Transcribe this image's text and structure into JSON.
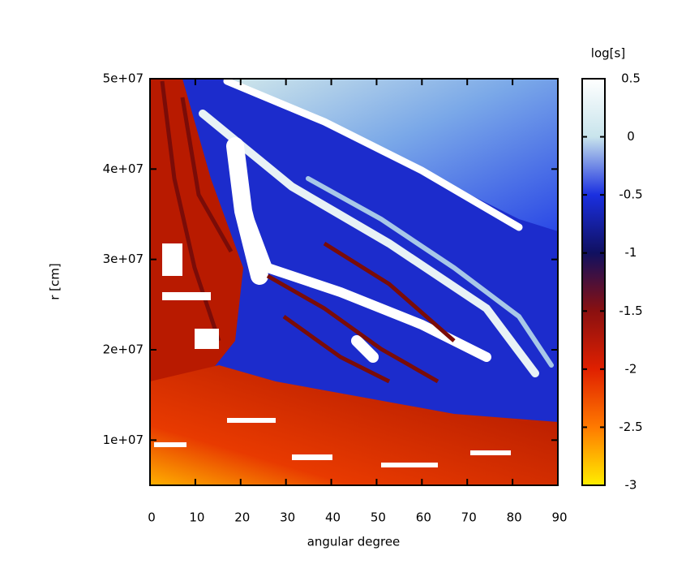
{
  "chart_data": {
    "type": "heatmap",
    "xlabel": "angular degree",
    "ylabel": "r [cm]",
    "xlim": [
      0,
      90
    ],
    "xticks": [
      0,
      10,
      20,
      30,
      40,
      50,
      60,
      70,
      80,
      90
    ],
    "ylim": [
      5000000,
      50000000
    ],
    "yticks": [
      {
        "value": 10000000,
        "label": "1e+07"
      },
      {
        "value": 20000000,
        "label": "2e+07"
      },
      {
        "value": 30000000,
        "label": "3e+07"
      },
      {
        "value": 40000000,
        "label": "4e+07"
      },
      {
        "value": 50000000,
        "label": "5e+07"
      }
    ],
    "colorbar": {
      "label": "log[s]",
      "lim": [
        -3,
        0.5
      ],
      "ticks": [
        0.5,
        0,
        -0.5,
        -1,
        -1.5,
        -2,
        -2.5,
        -3
      ],
      "colors": [
        "#ffffff",
        "#c8e4ec",
        "#1a2fe0",
        "#101060",
        "#8a1010",
        "#e02000",
        "#ff7a00",
        "#ffee00"
      ]
    }
  }
}
